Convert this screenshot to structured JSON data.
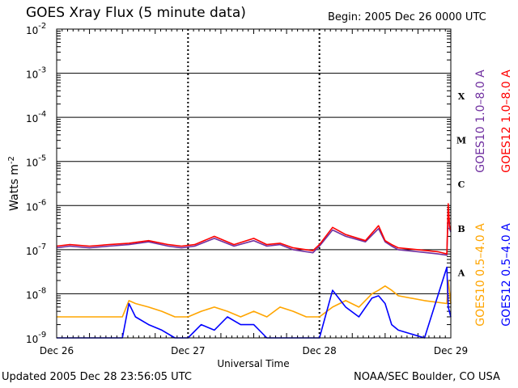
{
  "page": {
    "title": "GOES Xray Flux (5 minute data)",
    "begin": "Begin:  2005 Dec 26 0000 UTC",
    "updated": "Updated 2005 Dec 28 23:56:05 UTC",
    "credit": "NOAA/SEC Boulder, CO USA"
  },
  "chart_data": {
    "type": "line",
    "title": "GOES Xray Flux (5 minute data)",
    "xlabel": "Universal Time",
    "ylabel": "Watts m",
    "ylabel_sup": "-2",
    "yscale": "log",
    "ylim": [
      1e-09,
      0.01
    ],
    "y_ticks": [
      {
        "base": "10",
        "exp": "-2",
        "value": 0.01
      },
      {
        "base": "10",
        "exp": "-3",
        "value": 0.001
      },
      {
        "base": "10",
        "exp": "-4",
        "value": 0.0001
      },
      {
        "base": "10",
        "exp": "-5",
        "value": 1e-05
      },
      {
        "base": "10",
        "exp": "-6",
        "value": 1e-06
      },
      {
        "base": "10",
        "exp": "-7",
        "value": 1e-07
      },
      {
        "base": "10",
        "exp": "-8",
        "value": 1e-08
      },
      {
        "base": "10",
        "exp": "-9",
        "value": 1e-09
      }
    ],
    "xlim": [
      0,
      3
    ],
    "x_ticks": [
      {
        "label": "Dec 26",
        "value": 0
      },
      {
        "label": "Dec 27",
        "value": 1
      },
      {
        "label": "Dec 28",
        "value": 2
      },
      {
        "label": "Dec 29",
        "value": 3
      }
    ],
    "flare_classes": [
      {
        "label": "X",
        "value": 0.0003
      },
      {
        "label": "M",
        "value": 3e-05
      },
      {
        "label": "C",
        "value": 3e-06
      },
      {
        "label": "B",
        "value": 3e-07
      },
      {
        "label": "A",
        "value": 3e-08
      }
    ],
    "grid": true,
    "colors": {
      "goes10_long": "#7030a0",
      "goes12_long": "#ff0000",
      "goes10_short": "#ffa500",
      "goes12_short": "#0000ff"
    },
    "series": [
      {
        "name": "GOES10 1.0-8.0 A",
        "color": "#7030a0",
        "legend": "GOES10 1.0–8.0 A",
        "x": [
          0,
          0.1,
          0.25,
          0.4,
          0.55,
          0.7,
          0.85,
          0.95,
          1.05,
          1.2,
          1.35,
          1.5,
          1.6,
          1.7,
          1.8,
          1.9,
          1.95,
          2.0,
          2.1,
          2.2,
          2.35,
          2.45,
          2.5,
          2.55,
          2.6,
          2.75,
          2.9,
          2.97,
          2.98,
          2.99,
          3.0
        ],
        "y": [
          1.1e-07,
          1.2e-07,
          1.1e-07,
          1.2e-07,
          1.3e-07,
          1.5e-07,
          1.2e-07,
          1.1e-07,
          1.2e-07,
          1.8e-07,
          1.2e-07,
          1.6e-07,
          1.2e-07,
          1.3e-07,
          1e-07,
          9e-08,
          8.5e-08,
          1.2e-07,
          2.8e-07,
          2e-07,
          1.5e-07,
          3e-07,
          1.5e-07,
          1.2e-07,
          1e-07,
          9e-08,
          8e-08,
          7.5e-08,
          9e-07,
          3e-07,
          2.5e-07
        ]
      },
      {
        "name": "GOES12 1.0-8.0 A",
        "color": "#ff0000",
        "legend": "GOES12 1.0–8.0 A",
        "x": [
          0,
          0.1,
          0.25,
          0.4,
          0.55,
          0.7,
          0.85,
          0.95,
          1.05,
          1.2,
          1.35,
          1.5,
          1.6,
          1.7,
          1.8,
          1.9,
          1.95,
          2.0,
          2.1,
          2.2,
          2.35,
          2.45,
          2.5,
          2.55,
          2.6,
          2.75,
          2.9,
          2.97,
          2.98,
          2.99,
          3.0
        ],
        "y": [
          1.2e-07,
          1.3e-07,
          1.2e-07,
          1.3e-07,
          1.4e-07,
          1.6e-07,
          1.3e-07,
          1.2e-07,
          1.3e-07,
          2e-07,
          1.3e-07,
          1.8e-07,
          1.3e-07,
          1.4e-07,
          1.1e-07,
          1e-07,
          9.5e-08,
          1.3e-07,
          3.2e-07,
          2.2e-07,
          1.6e-07,
          3.5e-07,
          1.6e-07,
          1.3e-07,
          1.1e-07,
          1e-07,
          9e-08,
          8e-08,
          1.1e-06,
          3.5e-07,
          2.8e-07
        ]
      },
      {
        "name": "GOES10 0.5-4.0 A",
        "color": "#ffa500",
        "legend": "GOES10 0.5–4.0 A",
        "x": [
          0,
          0.3,
          0.5,
          0.55,
          0.6,
          0.7,
          0.8,
          0.9,
          1.0,
          1.1,
          1.2,
          1.3,
          1.4,
          1.5,
          1.6,
          1.7,
          1.8,
          1.9,
          2.0,
          2.1,
          2.2,
          2.3,
          2.4,
          2.45,
          2.5,
          2.55,
          2.6,
          2.8,
          2.97,
          2.98,
          3.0
        ],
        "y": [
          3e-09,
          3e-09,
          3e-09,
          7e-09,
          6e-09,
          5e-09,
          4e-09,
          3e-09,
          3e-09,
          4e-09,
          5e-09,
          4e-09,
          3e-09,
          4e-09,
          3e-09,
          5e-09,
          4e-09,
          3e-09,
          3e-09,
          5e-09,
          7e-09,
          5e-09,
          1e-08,
          1.2e-08,
          1.5e-08,
          1.2e-08,
          9e-09,
          7e-09,
          6e-09,
          2e-08,
          6e-09
        ]
      },
      {
        "name": "GOES12 0.5-4.0 A",
        "color": "#0000ff",
        "legend": "GOES12 0.5–4.0 A",
        "x": [
          0,
          0.3,
          0.5,
          0.55,
          0.6,
          0.7,
          0.8,
          0.9,
          1.0,
          1.1,
          1.2,
          1.3,
          1.4,
          1.5,
          1.6,
          1.7,
          1.8,
          1.9,
          2.0,
          2.1,
          2.2,
          2.3,
          2.4,
          2.45,
          2.5,
          2.55,
          2.6,
          2.8,
          2.97,
          2.98,
          3.0
        ],
        "y": [
          1e-09,
          1e-09,
          1e-09,
          6e-09,
          3e-09,
          2e-09,
          1.5e-09,
          1e-09,
          1e-09,
          2e-09,
          1.5e-09,
          3e-09,
          2e-09,
          2e-09,
          1e-09,
          1e-09,
          1e-09,
          1e-09,
          1e-09,
          1.2e-08,
          5e-09,
          3e-09,
          8e-09,
          9e-09,
          6e-09,
          2e-09,
          1.5e-09,
          1e-09,
          4e-08,
          5e-09,
          3e-09
        ]
      }
    ]
  }
}
